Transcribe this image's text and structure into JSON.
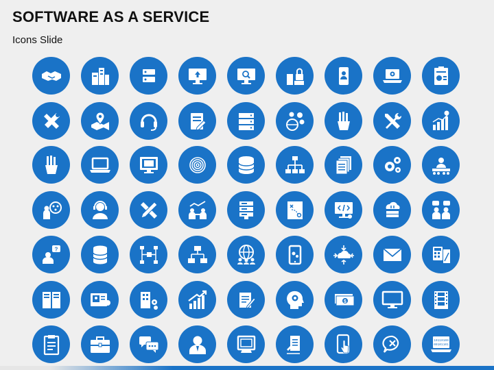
{
  "slide": {
    "title": "SOFTWARE AS A SERVICE",
    "subtitle": "Icons Slide"
  },
  "colors": {
    "circle": "#1a73c7",
    "background": "#efefef",
    "glyph": "#ffffff"
  },
  "icons": [
    [
      "handshake-icon",
      "buildings-icon",
      "server-icon",
      "monitor-upload-icon",
      "monitor-search-icon",
      "secure-building-icon",
      "mobile-user-icon",
      "laptop-settings-icon",
      "clipboard-report-icon"
    ],
    [
      "tools-icon",
      "map-pin-icon",
      "headset-icon",
      "edit-document-icon",
      "server-rack-icon",
      "global-info-icon",
      "hand-holding-icon",
      "wrench-screwdriver-icon",
      "growth-chart-icon"
    ],
    [
      "hand-holding-icon",
      "laptop-icon",
      "monitor-icon",
      "fingerprint-icon",
      "database-icon",
      "network-icon",
      "documents-icon",
      "gears-icon",
      "team-meeting-icon"
    ],
    [
      "user-ideas-icon",
      "support-agent-icon",
      "pencil-ruler-icon",
      "collaboration-chart-icon",
      "server-list-icon",
      "strategy-board-icon",
      "code-monitor-icon",
      "cloud-server-icon",
      "user-chat-icon"
    ],
    [
      "user-question-icon",
      "database-stack-icon",
      "org-structure-icon",
      "network-monitors-icon",
      "global-team-icon",
      "tablet-icon",
      "cloud-arrows-icon",
      "envelope-icon",
      "calculator-document-icon"
    ],
    [
      "server-cabinet-icon",
      "certificate-icon",
      "building-gears-icon",
      "growth-arrow-icon",
      "document-edit-icon",
      "head-gear-icon",
      "money-icon",
      "desktop-icon",
      "film-strip-icon"
    ],
    [
      "clipboard-icon",
      "briefcase-icon",
      "chat-bubbles-icon",
      "businessman-icon",
      "retro-monitor-icon",
      "paper-pen-icon",
      "touch-phone-icon",
      "chat-error-icon",
      "binary-laptop-icon"
    ]
  ]
}
